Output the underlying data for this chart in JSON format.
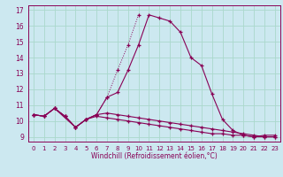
{
  "xlabel": "Windchill (Refroidissement éolien,°C)",
  "ylabel": "",
  "background_color": "#cce8f0",
  "grid_color": "#aad8cc",
  "line_color": "#880055",
  "x": [
    0,
    1,
    2,
    3,
    4,
    5,
    6,
    7,
    8,
    9,
    10,
    11,
    12,
    13,
    14,
    15,
    16,
    17,
    18,
    19,
    20,
    21,
    22,
    23
  ],
  "series_main": [
    10.4,
    10.3,
    10.8,
    null,
    9.6,
    10.1,
    10.4,
    11.5,
    11.8,
    13.2,
    14.8,
    16.7,
    16.5,
    16.3,
    15.6,
    14.0,
    13.5,
    11.7,
    10.1,
    9.4,
    9.1,
    9.0,
    9.1,
    9.1
  ],
  "series_dot": [
    10.4,
    10.3,
    10.8,
    10.3,
    9.6,
    10.1,
    10.4,
    11.5,
    13.2,
    14.8,
    16.7,
    null,
    null,
    null,
    null,
    null,
    null,
    null,
    null,
    null,
    null,
    null,
    null,
    null
  ],
  "series_upper": [
    10.4,
    10.3,
    10.8,
    10.3,
    9.6,
    10.1,
    10.4,
    10.5,
    10.4,
    10.3,
    10.2,
    10.1,
    10.0,
    9.9,
    9.8,
    9.7,
    9.6,
    9.5,
    9.4,
    9.3,
    9.2,
    9.1,
    9.0,
    9.0
  ],
  "series_lower": [
    10.4,
    10.3,
    10.8,
    10.3,
    9.6,
    10.1,
    10.3,
    10.2,
    10.1,
    10.0,
    9.9,
    9.8,
    9.7,
    9.6,
    9.5,
    9.4,
    9.3,
    9.2,
    9.2,
    9.1,
    9.1,
    9.0,
    9.0,
    9.0
  ],
  "xlim": [
    -0.5,
    23.5
  ],
  "ylim": [
    8.7,
    17.3
  ],
  "yticks": [
    9,
    10,
    11,
    12,
    13,
    14,
    15,
    16,
    17
  ],
  "xticks": [
    0,
    1,
    2,
    3,
    4,
    5,
    6,
    7,
    8,
    9,
    10,
    11,
    12,
    13,
    14,
    15,
    16,
    17,
    18,
    19,
    20,
    21,
    22,
    23
  ]
}
